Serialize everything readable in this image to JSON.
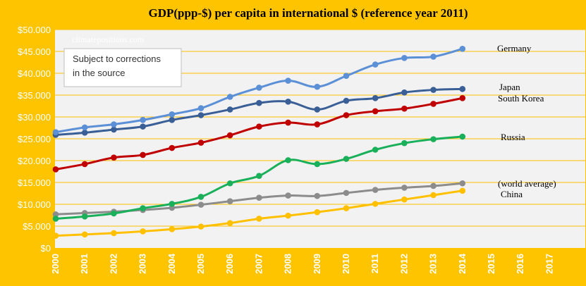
{
  "chart_data": {
    "type": "line",
    "title": "GDP(ppp-$) per capita in international $ (reference year 2011)",
    "x": [
      "2000",
      "2001",
      "2002",
      "2003",
      "2004",
      "2005",
      "2006",
      "2007",
      "2008",
      "2009",
      "2010",
      "2011",
      "2012",
      "2013",
      "2014"
    ],
    "x_ticks": [
      "2000",
      "2001",
      "2002",
      "2003",
      "2004",
      "2005",
      "2006",
      "2007",
      "2008",
      "2009",
      "2010",
      "2011",
      "2012",
      "2013",
      "2014",
      "2015",
      "2016",
      "2017"
    ],
    "ylim": [
      0,
      50000
    ],
    "y_ticks": [
      "$0",
      "$5.000",
      "$10.000",
      "$15.000",
      "$20.000",
      "$25.000",
      "$30.000",
      "$35.000",
      "$40.000",
      "$45.000",
      "$50.000"
    ],
    "grid": true,
    "series": [
      {
        "name": "Germany",
        "color": "#5B8FD6",
        "values": [
          26500,
          27600,
          28300,
          29300,
          30600,
          32000,
          34600,
          36700,
          38300,
          36900,
          39400,
          42000,
          43500,
          43800,
          45600
        ]
      },
      {
        "name": "Japan",
        "color": "#3A5F96",
        "values": [
          25900,
          26400,
          27100,
          27800,
          29300,
          30400,
          31700,
          33200,
          33500,
          31700,
          33700,
          34300,
          35600,
          36200,
          36400
        ]
      },
      {
        "name": "South Korea",
        "color": "#C00000",
        "values": [
          18000,
          19200,
          20700,
          21300,
          22900,
          24100,
          25800,
          27800,
          28700,
          28300,
          30400,
          31300,
          31900,
          33000,
          34300
        ]
      },
      {
        "name": "Russia",
        "color": "#1AB05A",
        "values": [
          6700,
          7200,
          7900,
          9100,
          10100,
          11700,
          14800,
          16500,
          20100,
          19200,
          20400,
          22500,
          24000,
          24900,
          25500
        ]
      },
      {
        "name": "(world average)",
        "color": "#8C8C8C",
        "values": [
          7700,
          8000,
          8300,
          8700,
          9200,
          9900,
          10700,
          11500,
          12000,
          11900,
          12600,
          13300,
          13800,
          14200,
          14800
        ]
      },
      {
        "name": "China",
        "color": "#FFC000",
        "values": [
          2800,
          3100,
          3400,
          3800,
          4300,
          4900,
          5700,
          6700,
          7400,
          8200,
          9100,
          10100,
          11100,
          12100,
          13100
        ]
      }
    ],
    "watermark": "climatepositions.com",
    "note_lines": [
      "Subject to corrections",
      "in the source"
    ]
  },
  "colors": {
    "background": "#FFC400",
    "plot_area": "#F2F2F2",
    "gridline": "#FFC000"
  }
}
